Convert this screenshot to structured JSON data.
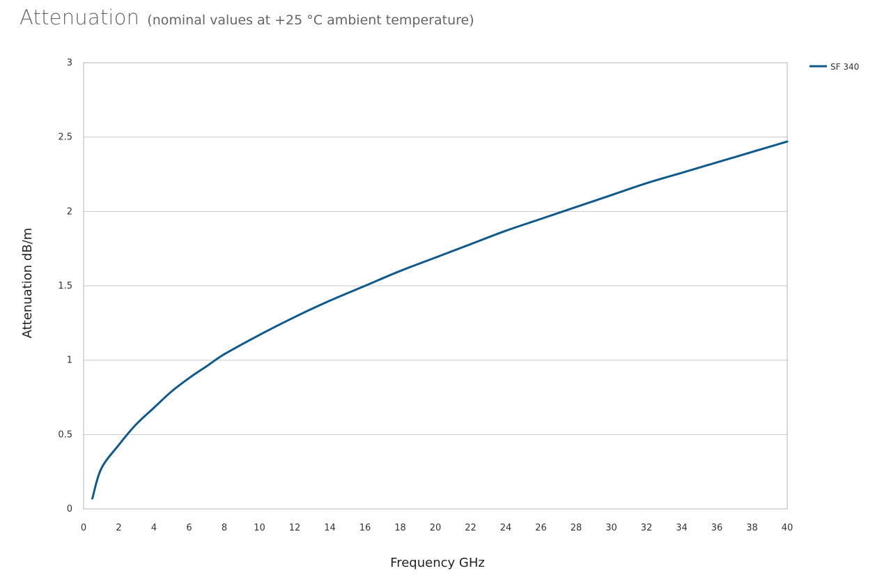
{
  "title": {
    "main": "Attenuation",
    "subtitle": "(nominal values at +25 °C ambient temperature)"
  },
  "chart_data": {
    "type": "line",
    "xlabel": "Frequency GHz",
    "ylabel": "Attenuation dB/m",
    "xlim": [
      0,
      40
    ],
    "ylim": [
      0,
      3
    ],
    "x_ticks": [
      "0",
      "2",
      "4",
      "6",
      "8",
      "10",
      "12",
      "14",
      "16",
      "18",
      "20",
      "22",
      "24",
      "26",
      "28",
      "30",
      "32",
      "34",
      "36",
      "38",
      "40"
    ],
    "y_ticks": [
      "0",
      "0.5",
      "1",
      "1.5",
      "2",
      "2.5",
      "3"
    ],
    "grid": "horizontal",
    "legend_position": "top-right",
    "colors": {
      "series": "#0f5a8c",
      "grid": "#c8c8c8",
      "frame": "#b4b4b4"
    },
    "series": [
      {
        "name": "SF 340",
        "x": [
          0.5,
          1,
          2,
          3,
          4,
          5,
          6,
          7,
          8,
          10,
          12,
          14,
          16,
          18,
          20,
          22,
          24,
          26,
          28,
          30,
          32,
          34,
          36,
          38,
          40
        ],
        "y": [
          0.07,
          0.27,
          0.43,
          0.57,
          0.68,
          0.79,
          0.88,
          0.96,
          1.04,
          1.17,
          1.29,
          1.4,
          1.5,
          1.6,
          1.69,
          1.78,
          1.87,
          1.95,
          2.03,
          2.11,
          2.19,
          2.26,
          2.33,
          2.4,
          2.47
        ]
      }
    ]
  }
}
